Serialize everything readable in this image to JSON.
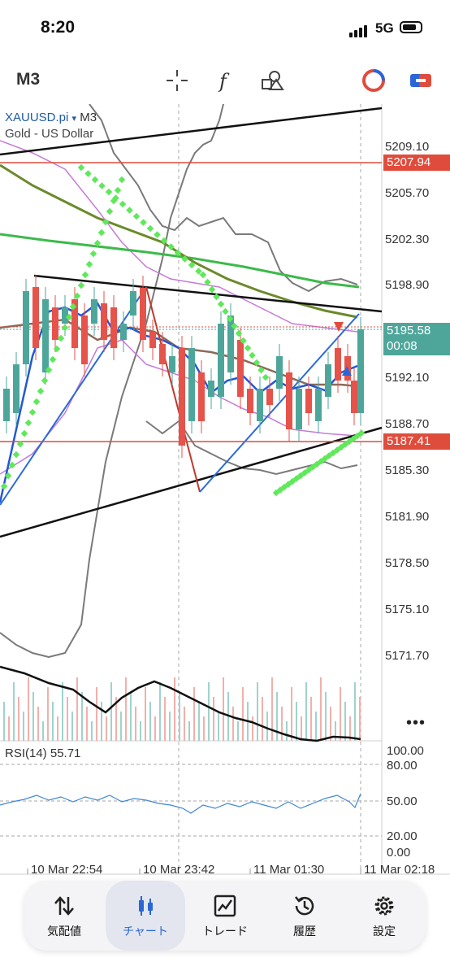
{
  "status_bar": {
    "time": "8:20",
    "network": "5G"
  },
  "toolbar": {
    "timeframe": "M3",
    "icons": [
      "crosshair-icon",
      "function-icon",
      "objects-icon",
      "account-icon",
      "trade-icon"
    ]
  },
  "chart": {
    "symbol": "XAUUSD.pi",
    "dropdown_marker": "▾",
    "timeframe": "M3",
    "description": "Gold - US Dollar",
    "price_levels": [
      "5209.10",
      "5205.70",
      "5202.30",
      "5198.90",
      "5192.10",
      "5188.70",
      "5185.30",
      "5181.90",
      "5178.50",
      "5175.10",
      "5171.70"
    ],
    "tags": {
      "upper_line": "5207.94",
      "current_price": "5195.58",
      "countdown": "00:08",
      "lower_line": "5187.41"
    },
    "colors": {
      "up": "#4ea69b",
      "down": "#e5534b",
      "tag_red": "#e04c3c",
      "tag_green": "#4ea69b",
      "ma_blue": "#2457d6",
      "ma_green": "#3cba4a",
      "ma_olive": "#6b8a2a",
      "sar": "#5ee85a"
    },
    "more_icon": "•••"
  },
  "rsi": {
    "label": "RSI(14) 55.71",
    "levels": [
      "100.00",
      "80.00",
      "50.00",
      "20.00",
      "0.00"
    ]
  },
  "time_axis": [
    "10 Mar 22:54",
    "10 Mar 23:42",
    "11 Mar 01:30",
    "11 Mar 02:18"
  ],
  "nav": [
    {
      "label": "気配値",
      "icon": "sort-arrows-icon"
    },
    {
      "label": "チャート",
      "icon": "candles-icon"
    },
    {
      "label": "トレード",
      "icon": "trend-chart-icon"
    },
    {
      "label": "履歴",
      "icon": "history-icon"
    },
    {
      "label": "設定",
      "icon": "gear-icon"
    }
  ]
}
